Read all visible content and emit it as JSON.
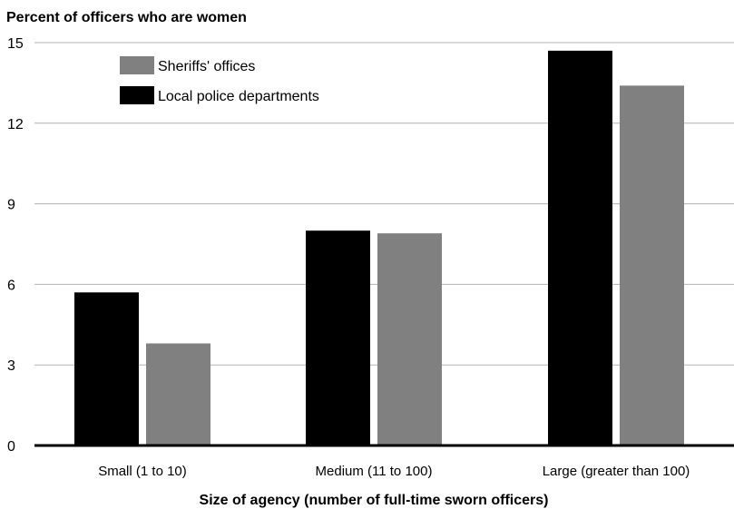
{
  "chart_data": {
    "type": "bar",
    "ylabel": "Percent of officers who are women",
    "xlabel": "Size of agency (number of full-time sworn officers)",
    "categories": [
      "Small (1 to 10)",
      "Medium (11 to 100)",
      "Large (greater than 100)"
    ],
    "series": [
      {
        "name": "Local police departments",
        "color": "#000000",
        "values": [
          5.7,
          8.0,
          14.7
        ]
      },
      {
        "name": "Sheriffs' offices",
        "color": "#808080",
        "values": [
          3.8,
          7.9,
          13.4
        ]
      }
    ],
    "ylim": [
      0,
      15
    ],
    "yticks": [
      "0",
      "3",
      "6",
      "9",
      "12",
      "15"
    ],
    "grid": true,
    "legend_position": "top-left"
  },
  "legend": {
    "items": [
      {
        "label": "Sheriffs' offices",
        "color": "#808080"
      },
      {
        "label": "Local police departments",
        "color": "#000000"
      }
    ]
  }
}
